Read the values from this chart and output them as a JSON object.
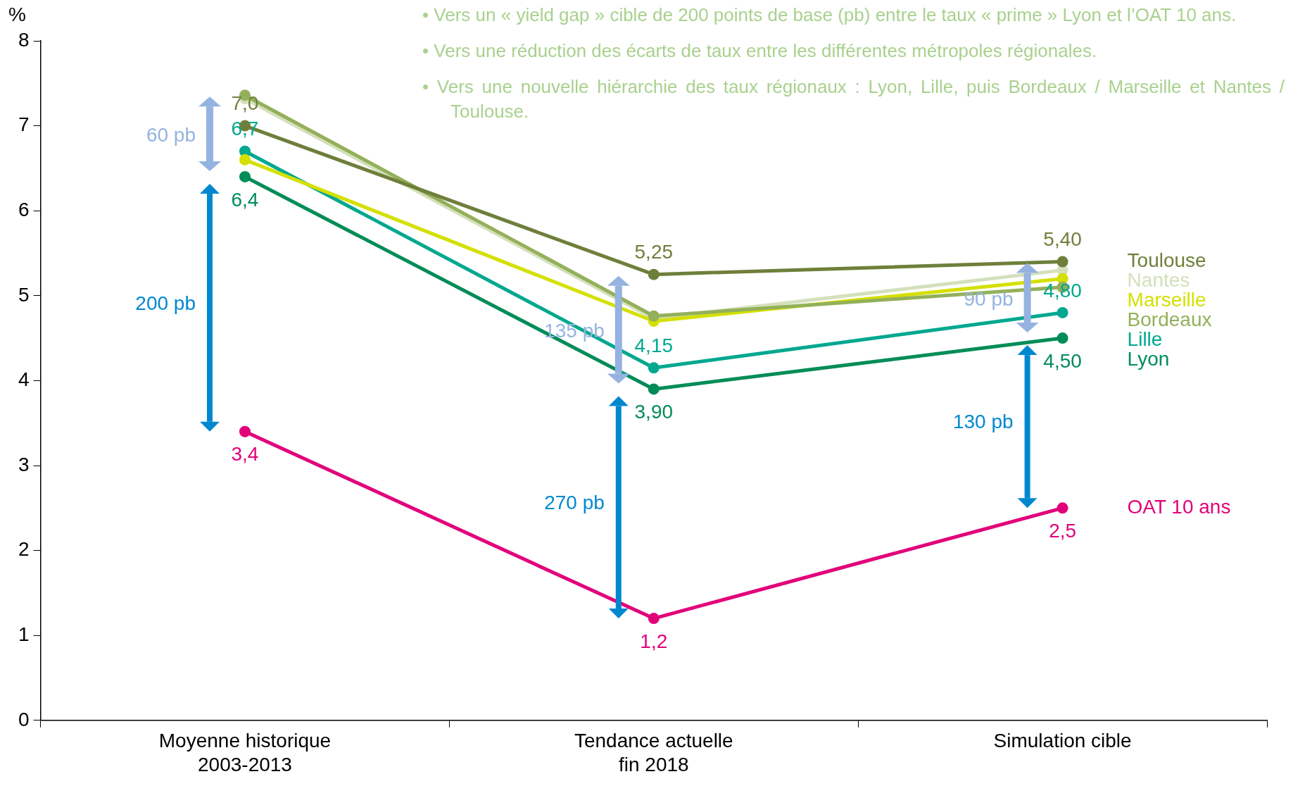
{
  "chart_data": {
    "type": "line",
    "ylabel": "%",
    "categories": [
      "Moyenne historique\n2003-2013",
      "Tendance actuelle\nfin 2018",
      "Simulation cible"
    ],
    "series": [
      {
        "name": "Toulouse",
        "color": "#6f7f3b",
        "values": [
          7.0,
          5.25,
          5.4
        ],
        "value_labels": [
          "7,0",
          "5,25",
          "5,40"
        ]
      },
      {
        "name": "Bordeaux",
        "color": "#93b05a",
        "values": [
          7.36,
          4.76,
          5.1
        ]
      },
      {
        "name": "Marseille",
        "color": "#d4e000",
        "values": [
          6.6,
          4.7,
          5.2
        ]
      },
      {
        "name": "Nantes",
        "color": "#d4e0bc",
        "values": [
          7.32,
          4.73,
          5.3
        ]
      },
      {
        "name": "Lille",
        "color": "#00a88f",
        "values": [
          6.7,
          4.15,
          4.8
        ],
        "value_labels": [
          "6,7",
          "4,15",
          "4,80"
        ]
      },
      {
        "name": "Lyon",
        "color": "#008c58",
        "values": [
          6.4,
          3.9,
          4.5
        ],
        "value_labels": [
          "6,4",
          "3,90",
          "4,50"
        ]
      },
      {
        "name": "OAT 10 ans",
        "color": "#e2007a",
        "values": [
          3.4,
          1.2,
          2.5
        ],
        "value_labels": [
          "3,4",
          "1,2",
          "2,5"
        ]
      }
    ],
    "ylim": [
      0,
      8
    ],
    "yticks": [
      0,
      1,
      2,
      3,
      4,
      5,
      6,
      7,
      8
    ],
    "grid": false,
    "marker": "circle",
    "line_style": "solid",
    "annotations": [
      "60 pb",
      "200 pb",
      "135 pb",
      "270 pb",
      "90 pb",
      "130 pb",
      "• Vers un « yield gap » cible de 200 points de base (pb) entre le taux « prime » Lyon et l’OAT 10 ans.",
      "• Vers une réduction des écarts de taux entre les différentes métropoles régionales.",
      "• Vers une nouvelle hiérarchie des taux régionaux : Lyon, Lille, puis Bordeaux / Marseille et Nantes / Toulouse."
    ]
  }
}
